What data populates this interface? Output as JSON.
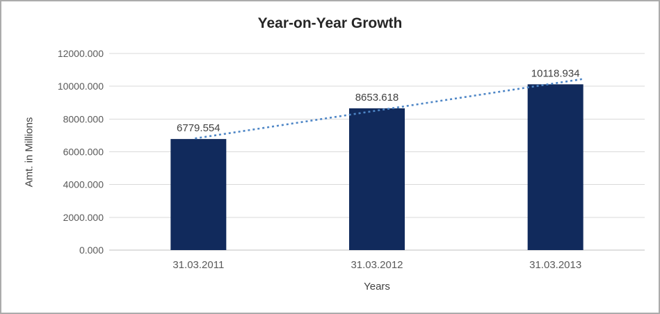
{
  "chart_data": {
    "type": "bar",
    "title": "Year-on-Year Growth",
    "xlabel": "Years",
    "ylabel": "Amt. in Millions",
    "categories": [
      "31.03.2011",
      "31.03.2012",
      "31.03.2013"
    ],
    "values": [
      6779.554,
      8653.618,
      10118.934
    ],
    "data_labels": [
      "6779.554",
      "8653.618",
      "10118.934"
    ],
    "ylim": [
      0,
      12000
    ],
    "yticks": [
      0,
      2000,
      4000,
      6000,
      8000,
      10000,
      12000
    ],
    "ytick_labels": [
      "0.000",
      "2000.000",
      "4000.000",
      "6000.000",
      "8000.000",
      "10000.000",
      "12000.000"
    ],
    "grid": true,
    "legend": "none",
    "trendline": {
      "type": "linear",
      "style": "dotted"
    },
    "colors": {
      "bar": "#112A5C",
      "trendline": "#4E86C6",
      "grid": "#D9D9D9",
      "axis_line": "#BFBFBF",
      "title": "#262626",
      "tick_label": "#595959",
      "data_label": "#404040",
      "axis_title": "#404040",
      "frame_border": "#ABABAB"
    }
  }
}
